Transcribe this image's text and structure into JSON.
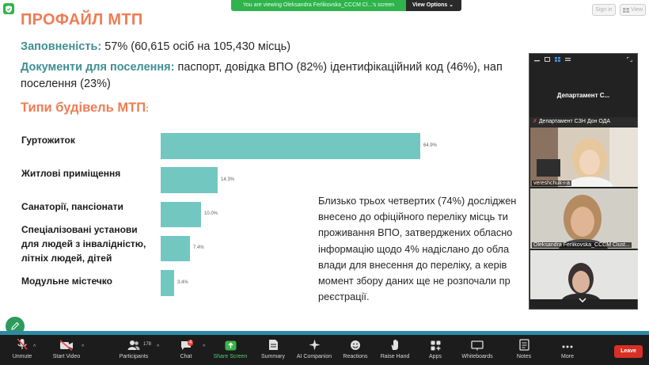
{
  "banner": {
    "text": "You are viewing Oleksandra Ferlikovska_CCCM Cl...'s screen",
    "view_options": "View Options"
  },
  "top_right": {
    "sign_in": "Sign in",
    "view": "View"
  },
  "slide": {
    "title": "ПРОФАЙЛ МТП",
    "occupancy_label": "Заповненість:",
    "occupancy_text": " 57% (60,615 осіб на 105,430 місць)",
    "docs_label": "Документи для поселення:",
    "docs_text": " паспорт, довідка ВПО (82%) ідентифікаційний код (46%), нап",
    "docs_text_line2": "поселення (23%)",
    "section_title": "Типи будівель МТП",
    "section_colon": ":",
    "paragraph_lines": [
      "Близько трьох четвертих (74%) досліджен",
      "внесено до офіційного переліку місць ти",
      "проживання ВПО, затверджених обласно",
      "інформацію щодо 4% надіслано до обла",
      "влади для внесення до переліку, а керів",
      "момент збору даних ще не розпочали пр",
      "реєстрації."
    ]
  },
  "chart_data": {
    "type": "bar",
    "orientation": "horizontal",
    "categories": [
      "Гуртожиток",
      "Житлові приміщення",
      "Санаторії, пансіонати",
      "Спеціалізовані установи для людей з інвалідністю, літніх людей, дітей",
      "Модульне містечко"
    ],
    "category_lines": [
      [
        "Гуртожиток"
      ],
      [
        "Житлові приміщення"
      ],
      [
        "Санаторії, пансіонати"
      ],
      [
        "Спеціалізовані установи",
        "для людей з інвалідністю,",
        "літніх людей, дітей"
      ],
      [
        "Модульне містечко"
      ]
    ],
    "values": [
      64.9,
      14.3,
      10.0,
      7.4,
      3.4
    ],
    "value_labels": [
      "64.9%",
      "14.3%",
      "10.0%",
      "7.4%",
      "3.4%"
    ],
    "xlim": [
      0,
      64.9
    ],
    "color": "#72c8c1"
  },
  "participants_panel": {
    "department_title": "Департамент  С...",
    "department_strip": "Департамент СЗН Дон ОДА",
    "tiles": [
      {
        "name": "vereshchuk-i-a"
      },
      {
        "name": "Oleksandra Ferlikovska_CCCM Clust..."
      },
      {
        "name": ""
      }
    ]
  },
  "toolbar": {
    "items": [
      {
        "key": "unmute",
        "label": "Unmute",
        "icon": "mic-off-icon"
      },
      {
        "key": "video",
        "label": "Start Video",
        "icon": "video-off-icon"
      },
      {
        "key": "participants",
        "label": "Participants",
        "icon": "participants-icon",
        "count": "178"
      },
      {
        "key": "chat",
        "label": "Chat",
        "icon": "chat-icon",
        "badge": "4"
      },
      {
        "key": "share",
        "label": "Share Screen",
        "icon": "share-screen-icon"
      },
      {
        "key": "summary",
        "label": "Summary",
        "icon": "summary-icon"
      },
      {
        "key": "ai",
        "label": "AI Companion",
        "icon": "ai-companion-icon"
      },
      {
        "key": "reactions",
        "label": "Reactions",
        "icon": "reactions-icon"
      },
      {
        "key": "raise",
        "label": "Raise Hand",
        "icon": "raise-hand-icon"
      },
      {
        "key": "apps",
        "label": "Apps",
        "icon": "apps-icon"
      },
      {
        "key": "whiteboards",
        "label": "Whiteboards",
        "icon": "whiteboards-icon"
      },
      {
        "key": "notes",
        "label": "Notes",
        "icon": "notes-icon"
      },
      {
        "key": "more",
        "label": "More",
        "icon": "more-icon"
      }
    ],
    "leave": "Leave"
  },
  "colors": {
    "title_orange": "#ee7d54",
    "label_teal": "#3f8f94",
    "bar_teal": "#72c8c1",
    "share_green": "#2fb34c",
    "leave_red": "#d93025"
  }
}
